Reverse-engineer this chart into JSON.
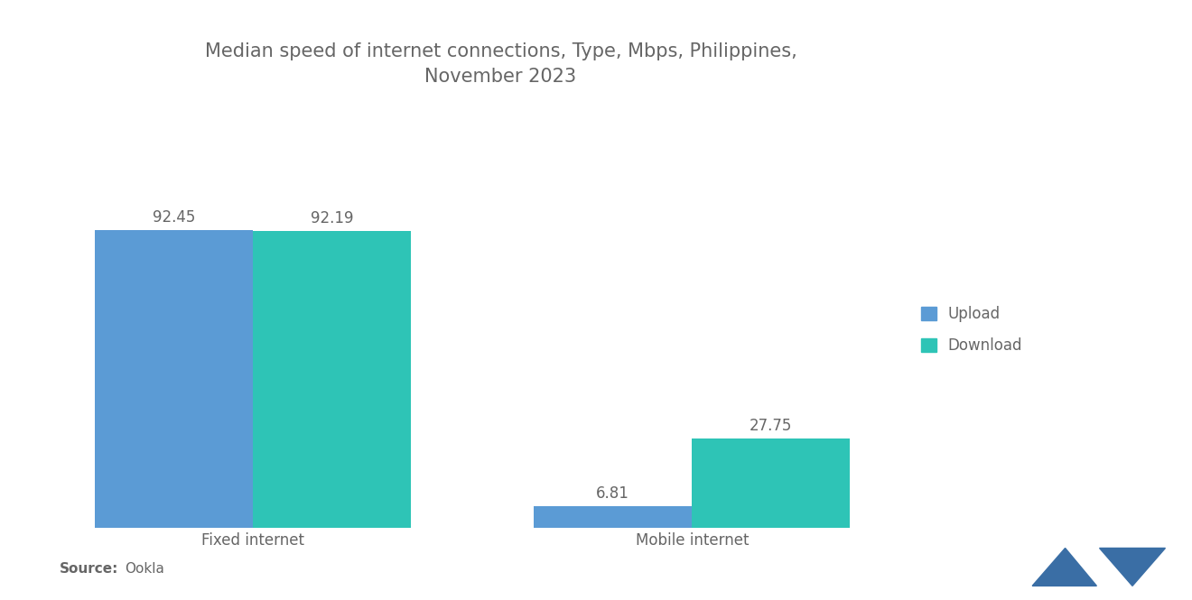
{
  "title": "Median speed of internet connections, Type, Mbps, Philippines,\nNovember 2023",
  "categories": [
    "Fixed internet",
    "Mobile internet"
  ],
  "upload_values": [
    92.45,
    6.81
  ],
  "download_values": [
    92.19,
    27.75
  ],
  "upload_color": "#5b9bd5",
  "download_color": "#2ec4b6",
  "upload_label": "Upload",
  "download_label": "Download",
  "source_bold": "Source:",
  "source_text": "Ookla",
  "title_fontsize": 15,
  "tick_fontsize": 12,
  "source_fontsize": 11,
  "legend_fontsize": 12,
  "value_label_fontsize": 12,
  "background_color": "#ffffff",
  "text_color": "#666666",
  "bar_width": 0.18
}
